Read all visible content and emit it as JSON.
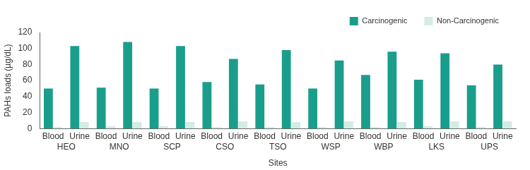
{
  "chart_data": {
    "type": "bar",
    "x_label": "Sites",
    "y_label": "PAHs loads (µg/dL)",
    "categories": [
      "Blood",
      "Urine",
      "Blood",
      "Urine",
      "Blood",
      "Urine",
      "Blood",
      "Urine",
      "Blood",
      "Urine",
      "Blood",
      "Urine",
      "Blood",
      "Urine",
      "Blood",
      "Urine",
      "Blood",
      "Urine"
    ],
    "groups": [
      "HEO",
      "MNO",
      "SCP",
      "CSO",
      "TSO",
      "WSP",
      "WBP",
      "LKS",
      "UPS"
    ],
    "series": [
      {
        "name": "Carcinogenic",
        "color": "#1a9e8c",
        "values": [
          50,
          103,
          51,
          108,
          50,
          103,
          58,
          87,
          55,
          98,
          50,
          85,
          67,
          96,
          61,
          94,
          54,
          80
        ]
      },
      {
        "name": "Non-Carcinogenic",
        "color": "#d3ece6",
        "values": [
          2,
          8,
          3,
          8,
          3,
          8,
          2,
          9,
          2,
          8,
          2,
          9,
          2,
          8,
          3,
          9,
          2,
          9
        ]
      }
    ],
    "ylim": [
      0,
      120
    ],
    "yticks": [
      0,
      20,
      40,
      60,
      80,
      100,
      120
    ],
    "grid": false,
    "legend": "upper right"
  }
}
